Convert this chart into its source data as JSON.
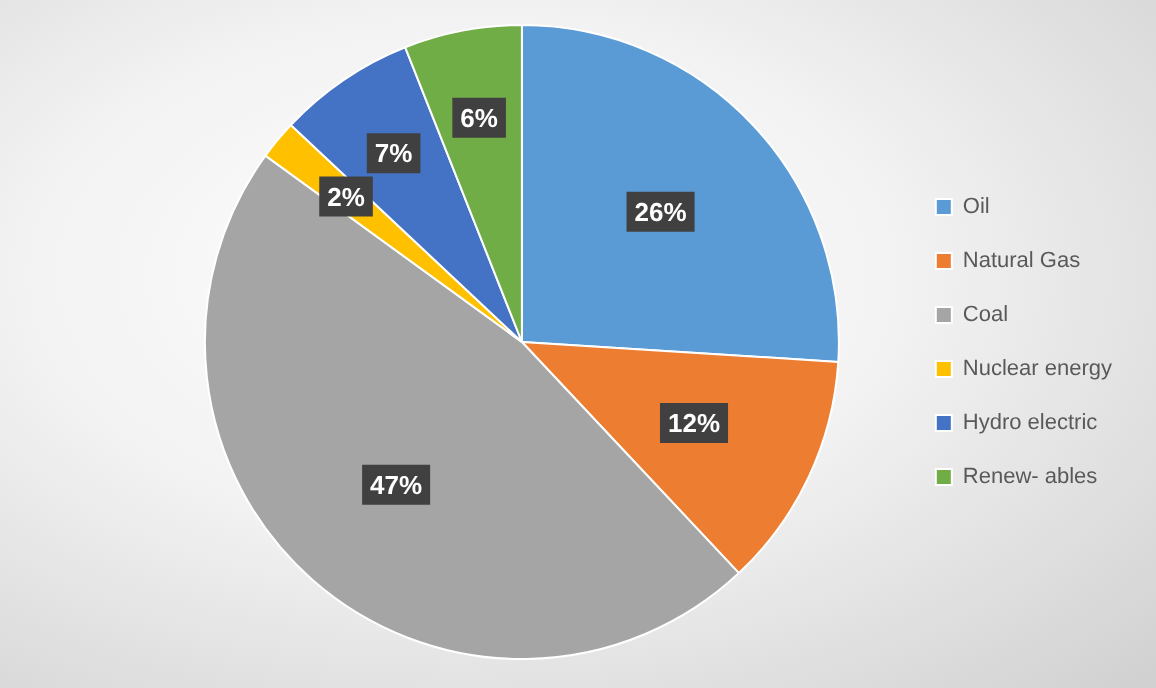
{
  "chart_data": {
    "type": "pie",
    "categories": [
      "Oil",
      "Natural Gas",
      "Coal",
      "Nuclear energy",
      "Hydro electric",
      "Renew- ables"
    ],
    "values": [
      26,
      12,
      47,
      2,
      7,
      6
    ],
    "colors": [
      "#5b9bd5",
      "#ed7d31",
      "#a5a5a5",
      "#ffc000",
      "#4472c4",
      "#70ad47"
    ],
    "value_labels": [
      "26%",
      "12%",
      "47%",
      "2%",
      "7%",
      "6%"
    ],
    "legend": "right"
  }
}
